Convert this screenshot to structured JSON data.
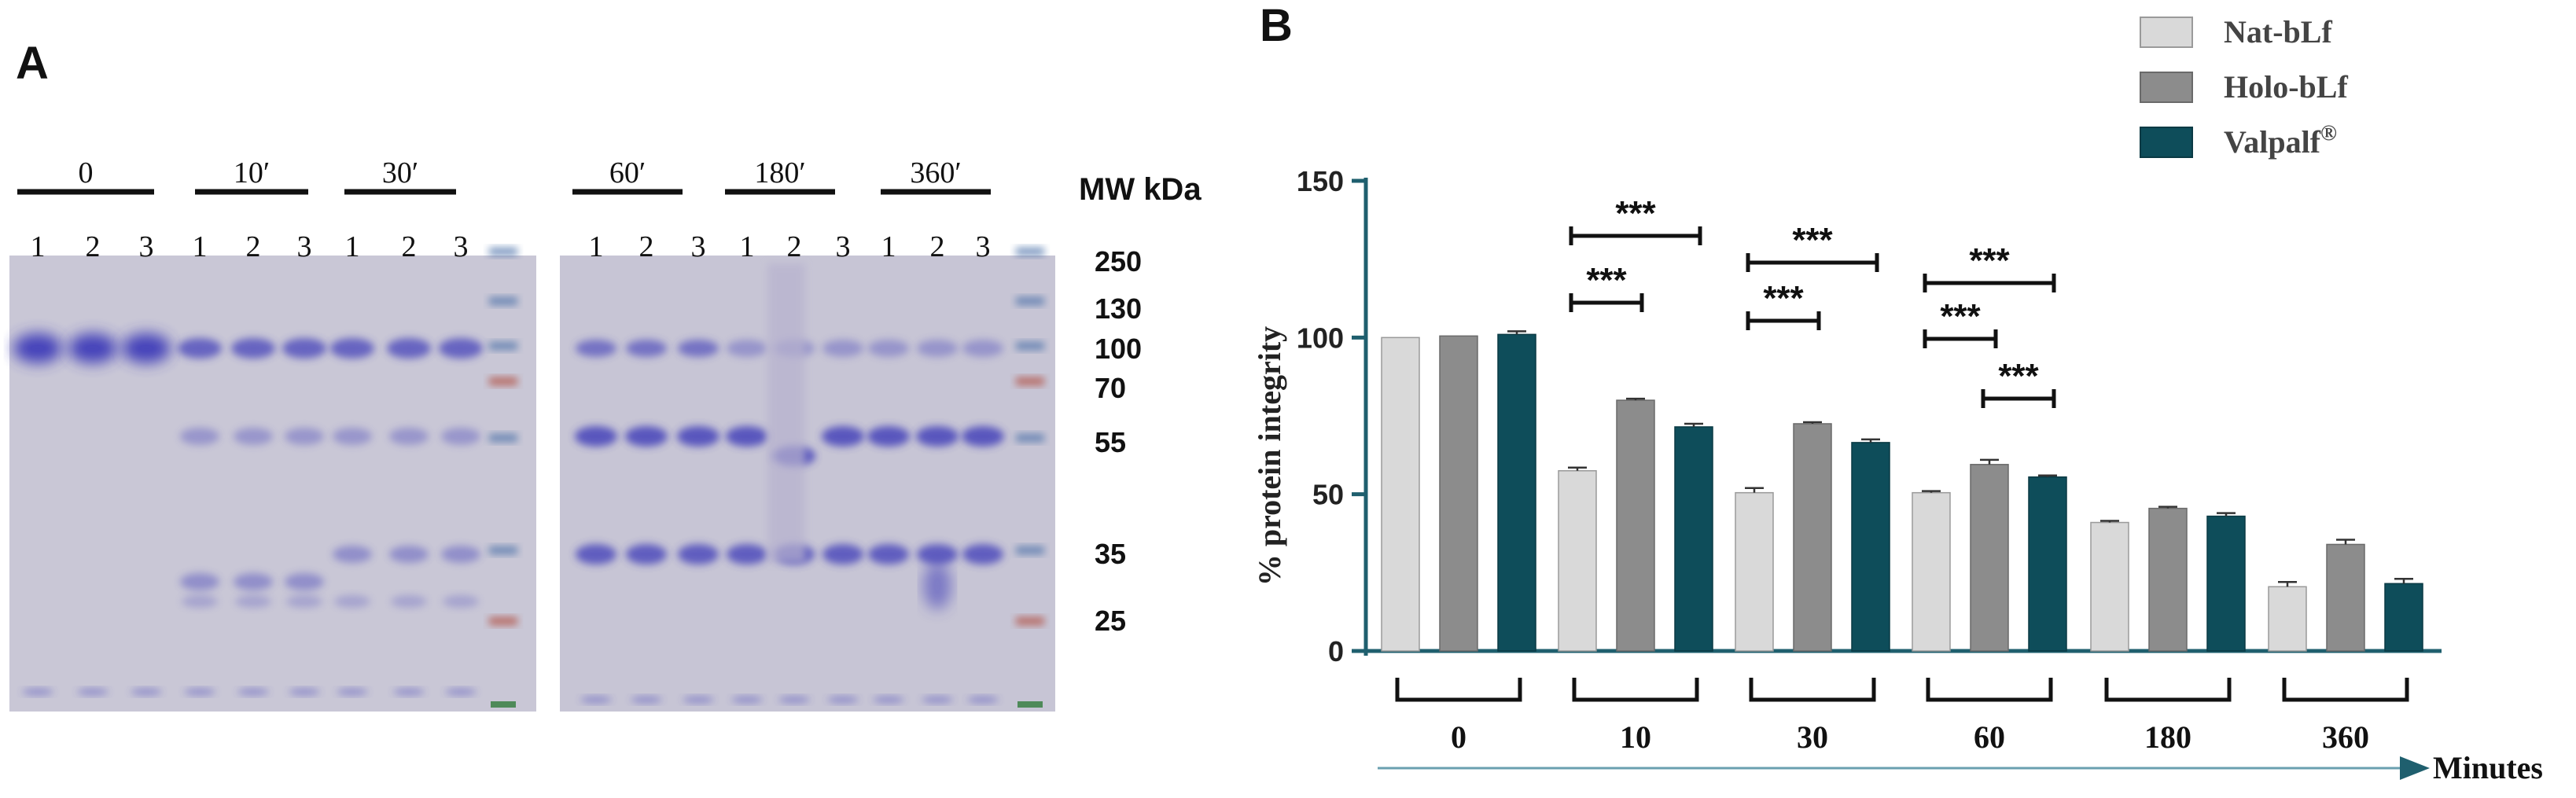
{
  "panel_a": {
    "label": "A",
    "time_groups_left": [
      "0",
      "10′",
      "30′"
    ],
    "time_groups_right": [
      "60′",
      "180′",
      "360′"
    ],
    "lane_numbers": [
      "1",
      "2",
      "3"
    ],
    "mw_title": "MW kDa",
    "mw_markers": [
      "250",
      "130",
      "100",
      "70",
      "55",
      "35",
      "25"
    ]
  },
  "panel_b": {
    "label": "B",
    "significance": "***",
    "x_axis_arrow_label": "Minutes"
  },
  "colors": {
    "nat": "#d9d9d9",
    "holo": "#8c8c8c",
    "valpalf": "#0e4d5a",
    "axis": "#1f5f6e",
    "gel_bg": "#c5c3d4",
    "band": "#3c3ab8"
  },
  "chart_data": {
    "type": "bar",
    "title": "",
    "xlabel": "Minutes",
    "ylabel": "% protein integrity",
    "ylim": [
      0,
      150
    ],
    "yticks": [
      0,
      50,
      100,
      150
    ],
    "categories": [
      "0",
      "10",
      "30",
      "60",
      "180",
      "360"
    ],
    "series": [
      {
        "name": "Nat-bLf",
        "values": [
          100,
          57.5,
          50.5,
          50.5,
          41,
          20.5
        ],
        "errors": [
          0,
          1,
          1.5,
          0.5,
          0.5,
          1.5
        ]
      },
      {
        "name": "Holo-bLf",
        "values": [
          100.5,
          80,
          72.5,
          59.5,
          45.5,
          34
        ],
        "errors": [
          0,
          0.5,
          0.5,
          1.5,
          0.5,
          1.5
        ]
      },
      {
        "name": "Valpalf",
        "values": [
          101,
          71.5,
          66.5,
          55.5,
          43,
          21.5
        ],
        "errors": [
          1,
          1,
          1,
          0.5,
          1,
          1.5
        ]
      }
    ],
    "legend": {
      "placement": "top-right",
      "entries": [
        {
          "name": "Nat-bLf",
          "superscript": ""
        },
        {
          "name": "Holo-bLf",
          "superscript": ""
        },
        {
          "name": "Valpalf",
          "superscript": "®"
        }
      ]
    },
    "significance_brackets": [
      {
        "category": "10",
        "from": "Nat-bLf",
        "to": "Valpalf",
        "label": "***"
      },
      {
        "category": "10",
        "from": "Nat-bLf",
        "to": "Holo-bLf",
        "label": "***"
      },
      {
        "category": "30",
        "from": "Nat-bLf",
        "to": "Valpalf",
        "label": "***"
      },
      {
        "category": "30",
        "from": "Nat-bLf",
        "to": "Holo-bLf",
        "label": "***"
      },
      {
        "category": "60",
        "from": "Nat-bLf",
        "to": "Valpalf",
        "label": "***"
      },
      {
        "category": "60",
        "from": "Nat-bLf",
        "to": "Holo-bLf",
        "label": "***"
      },
      {
        "category": "60",
        "from": "Holo-bLf",
        "to": "Valpalf",
        "label": "***"
      }
    ]
  }
}
